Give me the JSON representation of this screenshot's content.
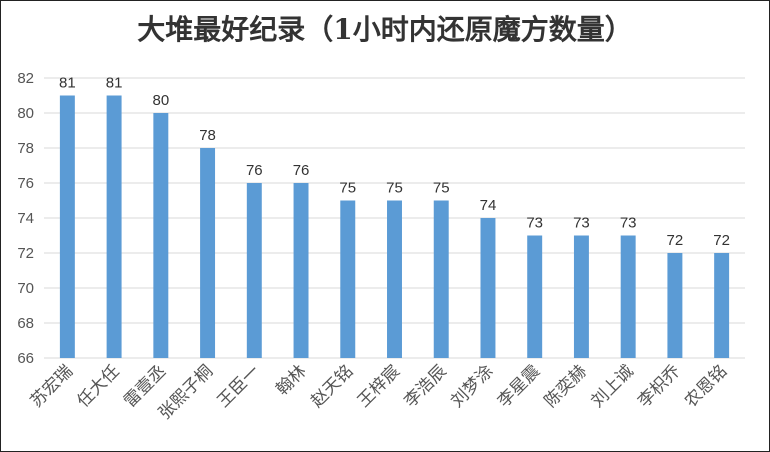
{
  "chart_data": {
    "type": "bar",
    "title": "大堆最好纪录（1小时内还原魔方数量）",
    "xlabel": "",
    "ylabel": "",
    "categories": [
      "苏宏瑞",
      "任大任",
      "雷壹丞",
      "张熙子桐",
      "王臣一",
      "翰林",
      "赵天铭",
      "王梓宸",
      "李浩辰",
      "刘梦涂",
      "李星震",
      "陈奕赫",
      "刘上诚",
      "李枳乔",
      "农恩铭"
    ],
    "values": [
      81,
      81,
      80,
      78,
      76,
      76,
      75,
      75,
      75,
      74,
      73,
      73,
      73,
      72,
      72
    ],
    "ylim": [
      66,
      82
    ],
    "yticks": [
      66,
      68,
      70,
      72,
      74,
      76,
      78,
      80,
      82
    ],
    "grid": true,
    "legend": "none",
    "bar_color": "#5B9BD5",
    "grid_color": "#d9d9d9"
  }
}
